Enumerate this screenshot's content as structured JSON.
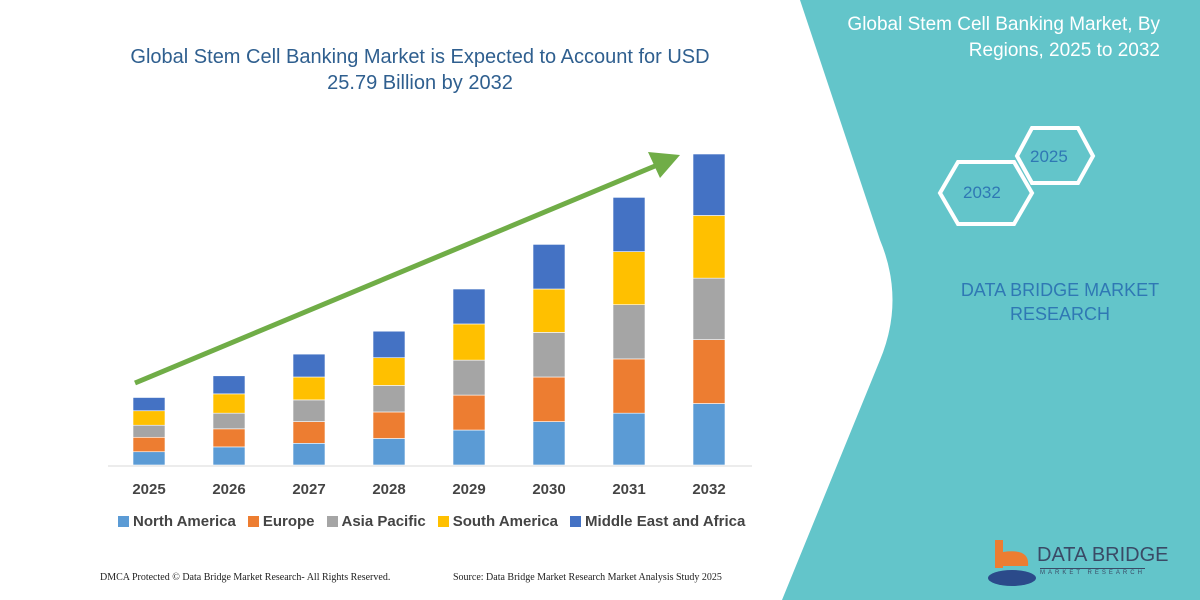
{
  "header": {
    "title_line1": "Global Stem Cell Banking Market is Expected to Account for USD",
    "title_line2": "25.79 Billion by 2032"
  },
  "side_panel": {
    "title_line1": "Global Stem Cell Banking Market, By",
    "title_line2": "Regions, 2025 to 2032",
    "hex_start": "2025",
    "hex_end": "2032",
    "brand_line1": "DATA BRIDGE MARKET",
    "brand_line2": "RESEARCH",
    "color": "#63c5ca"
  },
  "logo": {
    "name": "DATA BRIDGE",
    "sub": "MARKET RESEARCH"
  },
  "footer": {
    "left": "DMCA Protected © Data Bridge Market Research-  All Rights Reserved.",
    "right": "Source: Data Bridge Market Research  Market Analysis Study 2025"
  },
  "chart_data": {
    "type": "bar",
    "stacked": true,
    "title": "Global Stem Cell Banking Market is Expected to Account for USD 25.79 Billion by 2032",
    "categories": [
      "2025",
      "2026",
      "2027",
      "2028",
      "2029",
      "2030",
      "2031",
      "2032"
    ],
    "series": [
      {
        "name": "North America",
        "color": "#5b9bd5",
        "values": [
          1.1,
          1.5,
          1.8,
          2.2,
          2.9,
          3.6,
          4.3,
          5.1
        ]
      },
      {
        "name": "Europe",
        "color": "#ed7d31",
        "values": [
          1.2,
          1.5,
          1.8,
          2.2,
          2.9,
          3.7,
          4.5,
          5.3
        ]
      },
      {
        "name": "Asia Pacific",
        "color": "#a5a5a5",
        "values": [
          1.0,
          1.3,
          1.8,
          2.2,
          2.9,
          3.7,
          4.5,
          5.1
        ]
      },
      {
        "name": "South America",
        "color": "#ffc000",
        "values": [
          1.2,
          1.6,
          1.9,
          2.3,
          3.0,
          3.6,
          4.4,
          5.2
        ]
      },
      {
        "name": "Middle East and Africa",
        "color": "#4472c4",
        "values": [
          1.1,
          1.5,
          1.9,
          2.2,
          2.9,
          3.7,
          4.5,
          5.1
        ]
      }
    ],
    "trend_arrow_color": "#70ad47",
    "ylim": [
      0,
      26
    ],
    "y_axis_shown": false,
    "grid": false,
    "legend": "bottom"
  }
}
